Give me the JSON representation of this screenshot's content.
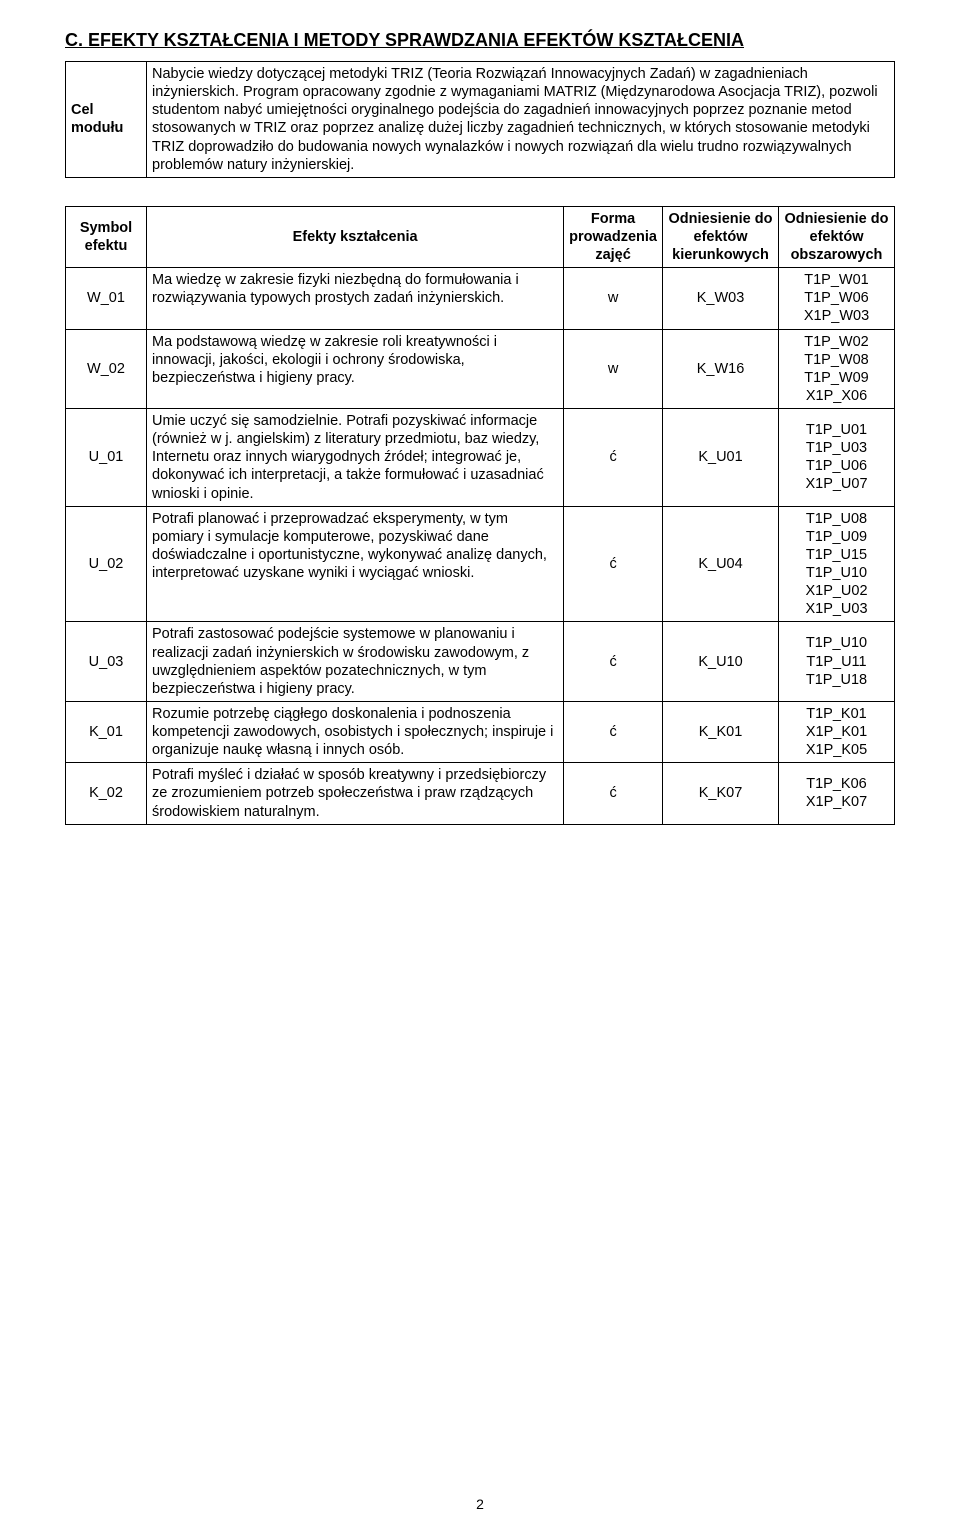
{
  "section_title": "C. EFEKTY KSZTAŁCENIA I METODY SPRAWDZANIA EFEKTÓW KSZTAŁCENIA",
  "module_cell": {
    "label": "Cel modułu",
    "text": "Nabycie wiedzy dotyczącej metodyki TRIZ (Teoria Rozwiązań Innowacyjnych Zadań) w zagadnieniach inżynierskich. Program opracowany zgodnie z wymaganiami MATRIZ (Międzynarodowa Asocjacja TRIZ), pozwoli studentom nabyć umiejętności oryginalnego podejścia do zagadnień innowacyjnych poprzez poznanie metod stosowanych w TRIZ oraz poprzez analizę dużej liczby zagadnień technicznych, w których stosowanie metodyki TRIZ doprowadziło do budowania nowych wynalazków i nowych rozwiązań dla wielu trudno rozwiązywalnych problemów natury inżynierskiej."
  },
  "efekty_headers": {
    "symbol": "Symbol efektu",
    "efekty": "Efekty kształcenia",
    "forma": "Forma prowadzenia zajęć",
    "kierunek": "Odniesienie do efektów kierunkowych",
    "obszar": "Odniesienie do efektów obszarowych"
  },
  "rows": [
    {
      "symbol": "W_01",
      "desc": "Ma wiedzę w zakresie fizyki niezbędną do formułowania i rozwiązywania typowych prostych zadań inżynierskich.",
      "forma": "w",
      "kier": "K_W03",
      "obsz": "T1P_W01\nT1P_W06\nX1P_W03"
    },
    {
      "symbol": "W_02",
      "desc": "Ma podstawową wiedzę w zakresie roli kreatywności i innowacji, jakości, ekologii i ochrony środowiska, bezpieczeństwa i higieny pracy.",
      "forma": "w",
      "kier": "K_W16",
      "obsz": "T1P_W02\nT1P_W08\nT1P_W09\nX1P_X06"
    },
    {
      "symbol": "U_01",
      "desc": "Umie uczyć się samodzielnie. Potrafi pozyskiwać informacje (również w j. angielskim) z literatury przedmiotu, baz wiedzy, Internetu oraz innych wiarygodnych źródeł; integrować je, dokonywać ich interpretacji, a także formułować i uzasadniać wnioski i opinie.",
      "forma": "ć",
      "kier": "K_U01",
      "obsz": "T1P_U01\nT1P_U03\nT1P_U06\nX1P_U07"
    },
    {
      "symbol": "U_02",
      "desc": "Potrafi planować i przeprowadzać eksperymenty, w tym pomiary i symulacje komputerowe, pozyskiwać dane doświadczalne i oportunistyczne, wykonywać analizę danych, interpretować uzyskane wyniki i wyciągać wnioski.",
      "forma": "ć",
      "kier": "K_U04",
      "obsz": "T1P_U08\nT1P_U09\nT1P_U15\nT1P_U10\nX1P_U02\nX1P_U03"
    },
    {
      "symbol": "U_03",
      "desc": "Potrafi zastosować podejście systemowe w planowaniu i realizacji zadań inżynierskich w środowisku zawodowym, z uwzględnieniem aspektów pozatechnicznych, w tym bezpieczeństwa i higieny pracy.",
      "forma": "ć",
      "kier": "K_U10",
      "obsz": "T1P_U10\nT1P_U11\nT1P_U18"
    },
    {
      "symbol": "K_01",
      "desc": "Rozumie potrzebę ciągłego doskonalenia i podnoszenia kompetencji zawodowych, osobistych i społecznych; inspiruje i organizuje naukę własną i innych osób.",
      "forma": "ć",
      "kier": "K_K01",
      "obsz": "T1P_K01\nX1P_K01\nX1P_K05"
    },
    {
      "symbol": "K_02",
      "desc": "Potrafi myśleć i działać w sposób kreatywny i przedsiębiorczy ze zrozumieniem potrzeb społeczeństwa i praw rządzących środowiskiem naturalnym.",
      "forma": "ć",
      "kier": "K_K07",
      "obsz": "T1P_K06\nX1P_K07"
    }
  ],
  "page_number": "2"
}
